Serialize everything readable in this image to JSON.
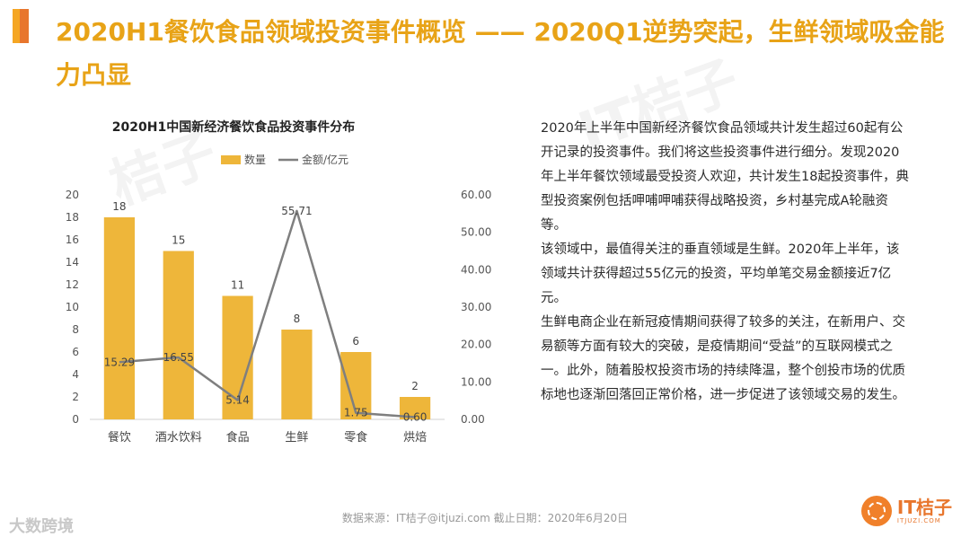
{
  "header": {
    "title": "2020H1餐饮食品领域投资事件概览 —— 2020Q1逆势突起，生鲜领域吸金能力凸显"
  },
  "chart_data": {
    "type": "bar",
    "title": "2020H1中国新经济餐饮食品投资事件分布",
    "categories": [
      "餐饮",
      "酒水饮料",
      "食品",
      "生鲜",
      "零食",
      "烘焙"
    ],
    "series": [
      {
        "name": "数量",
        "kind": "bar",
        "axis": "left",
        "values": [
          18,
          15,
          11,
          8,
          6,
          2
        ],
        "color": "#eeb63a"
      },
      {
        "name": "金额/亿元",
        "kind": "line",
        "axis": "right",
        "values": [
          15.29,
          16.55,
          5.14,
          55.71,
          1.75,
          0.6
        ],
        "color": "#7f7f7f"
      }
    ],
    "bar_labels": [
      "18",
      "15",
      "11",
      "8",
      "6",
      "2"
    ],
    "line_labels": [
      "15.29",
      "16.55",
      "5.14",
      "55.71",
      "1.75",
      "0.60"
    ],
    "y_left_ticks": [
      "0",
      "2",
      "4",
      "6",
      "8",
      "10",
      "12",
      "14",
      "16",
      "18",
      "20"
    ],
    "y_right_ticks": [
      "0.00",
      "10.00",
      "20.00",
      "30.00",
      "40.00",
      "50.00",
      "60.00"
    ],
    "ylim_left": [
      0,
      20
    ],
    "ylim_right": [
      0,
      60
    ],
    "legend_position": "top",
    "grid": false
  },
  "body": {
    "paragraphs": [
      "2020年上半年中国新经济餐饮食品领域共计发生超过60起有公开记录的投资事件。我们将这些投资事件进行细分。发现2020年上半年餐饮领域最受投资人欢迎，共计发生18起投资事件，典型投资案例包括呷哺呷哺获得战略投资，乡村基完成A轮融资等。",
      "该领域中，最值得关注的垂直领域是生鲜。2020年上半年，该领域共计获得超过55亿元的投资，平均单笔交易金额接近7亿元。",
      "生鲜电商企业在新冠疫情期间获得了较多的关注，在新用户、交易额等方面有较大的突破，是疫情期间“受益”的互联网模式之一。此外，随着股权投资市场的持续降温，整个创投市场的优质标地也逐渐回落回正常价格，进一步促进了该领域交易的发生。"
    ]
  },
  "footer": {
    "source": "数据来源：IT桔子@itjuzi.com   截止日期：2020年6月20日",
    "logo_name": "IT桔子",
    "logo_url": "ITJUZI.COM",
    "watermark": "大数跨境"
  },
  "watermarks": {
    "text1": "IT桔子",
    "text2": "桔子"
  }
}
